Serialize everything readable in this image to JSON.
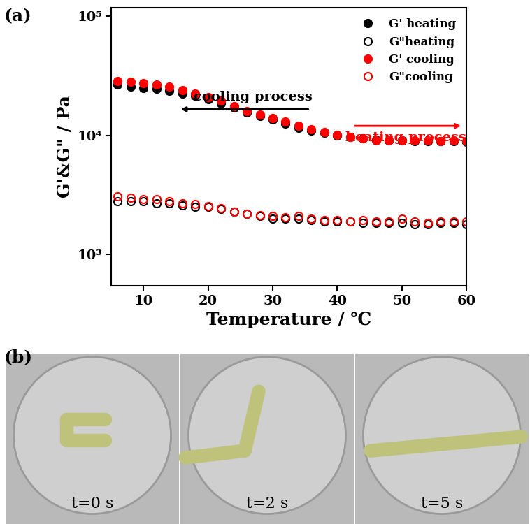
{
  "chart_data": {
    "type": "scatter",
    "panel_label": "(a)",
    "x_label": "Temperature / ℃",
    "y_label": "G'&G\" / Pa",
    "log": "y",
    "legend": "upper right",
    "xlim": [
      5,
      60
    ],
    "xticks": [
      10,
      20,
      30,
      40,
      50,
      60
    ],
    "ylim": [
      550,
      117000
    ],
    "yticks": [
      {
        "value": 1000,
        "label": "10³"
      },
      {
        "value": 10000,
        "label": "10⁴"
      },
      {
        "value": 100000,
        "label": "10⁵"
      }
    ],
    "x": [
      6,
      8,
      10,
      12,
      14,
      16,
      18,
      20,
      22,
      24,
      26,
      28,
      30,
      32,
      34,
      36,
      38,
      40,
      42,
      44,
      46,
      48,
      50,
      52,
      54,
      56,
      58,
      60
    ],
    "series": [
      {
        "name": "G' heating",
        "color": "#000000",
        "marker": "filled_circle",
        "values": [
          26500,
          25500,
          25000,
          24500,
          23500,
          22500,
          21500,
          20000,
          18500,
          17000,
          15500,
          14500,
          13500,
          12500,
          11500,
          11000,
          10500,
          10000,
          9700,
          9400,
          9200,
          9000,
          9000,
          8900,
          8900,
          8900,
          8900,
          8800
        ]
      },
      {
        "name": "G\"heating",
        "color": "#000000",
        "marker": "open_circle",
        "values": [
          2800,
          2800,
          2800,
          2700,
          2700,
          2600,
          2500,
          2500,
          2400,
          2300,
          2200,
          2100,
          2000,
          2000,
          2000,
          1950,
          1900,
          1900,
          1900,
          1850,
          1850,
          1850,
          1850,
          1800,
          1800,
          1850,
          1850,
          1800
        ]
      },
      {
        "name": "G' cooling",
        "color": "#ff0000",
        "marker": "filled_circle",
        "values": [
          28500,
          28000,
          27500,
          26500,
          25500,
          24000,
          22500,
          21000,
          19500,
          17500,
          16000,
          15000,
          14000,
          13000,
          12000,
          11200,
          10600,
          10100,
          9700,
          9400,
          9100,
          9000,
          9000,
          9000,
          9000,
          8900,
          9000,
          8900
        ]
      },
      {
        "name": "G\"cooling",
        "color": "#ff0000",
        "marker": "open_circle",
        "values": [
          3100,
          3000,
          2900,
          2900,
          2800,
          2700,
          2650,
          2550,
          2450,
          2300,
          2200,
          2150,
          2100,
          2050,
          2100,
          2000,
          1950,
          1950,
          1900,
          1950,
          1900,
          1900,
          2000,
          1900,
          1850,
          1900,
          1900,
          1900
        ]
      }
    ],
    "annotations": [
      "cooling process",
      "heating process"
    ]
  },
  "panel_b": {
    "label": "(b)",
    "captions": [
      "t=0 s",
      "t=2 s",
      "t=5 s"
    ]
  }
}
